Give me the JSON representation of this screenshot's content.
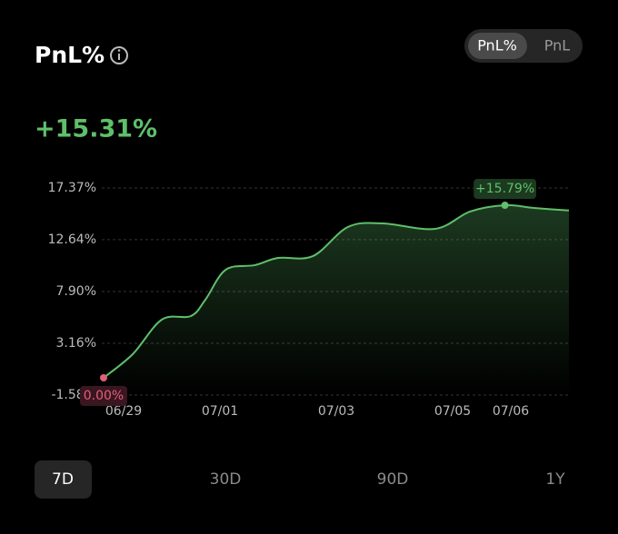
{
  "header": {
    "title": "PnL%",
    "toggle": [
      "PnL%",
      "PnL"
    ],
    "current": "+15.31%"
  },
  "ranges": [
    "7D",
    "30D",
    "90D",
    "1Y"
  ],
  "chart_data": {
    "type": "line",
    "x": [
      0,
      0.5,
      1,
      1.5,
      1.75,
      2.1,
      2.6,
      3,
      3.6,
      4.2,
      4.8,
      5.7,
      6.3,
      6.9,
      7.4,
      8
    ],
    "values": [
      0,
      2.16,
      5.32,
      5.65,
      7.15,
      9.89,
      10.31,
      10.97,
      11.14,
      13.8,
      14.13,
      13.63,
      15.21,
      15.79,
      15.54,
      15.31
    ],
    "value_labels": [
      "0.00%",
      null,
      null,
      null,
      null,
      null,
      null,
      null,
      null,
      null,
      null,
      null,
      null,
      "+15.79%",
      null,
      null
    ],
    "color": "#5fbf6a",
    "xlim": [
      0,
      8
    ],
    "xticks": [
      {
        "value": 0,
        "label": "06/29"
      },
      {
        "value": 2,
        "label": "07/01"
      },
      {
        "value": 4,
        "label": "07/03"
      },
      {
        "value": 6,
        "label": "07/05"
      },
      {
        "value": 7,
        "label": "07/06"
      }
    ],
    "ylim": [
      -1.58,
      17.37
    ],
    "yticks": [
      {
        "value": 17.37,
        "label": "17.37%"
      },
      {
        "value": 12.64,
        "label": "12.64%"
      },
      {
        "value": 7.9,
        "label": "7.90%"
      },
      {
        "value": 3.16,
        "label": "3.16%"
      },
      {
        "value": -1.58,
        "label": "-1.58%"
      }
    ],
    "grid": true
  }
}
